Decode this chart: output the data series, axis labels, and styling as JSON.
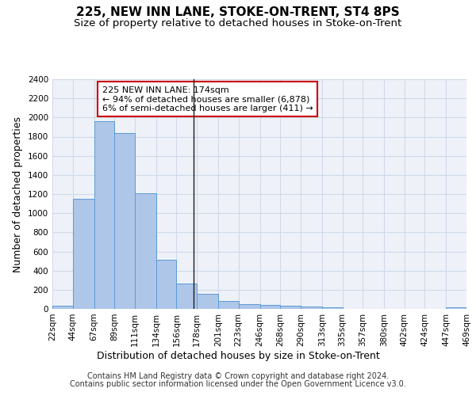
{
  "title": "225, NEW INN LANE, STOKE-ON-TRENT, ST4 8PS",
  "subtitle": "Size of property relative to detached houses in Stoke-on-Trent",
  "xlabel": "Distribution of detached houses by size in Stoke-on-Trent",
  "ylabel": "Number of detached properties",
  "footer_line1": "Contains HM Land Registry data © Crown copyright and database right 2024.",
  "footer_line2": "Contains public sector information licensed under the Open Government Licence v3.0.",
  "annotation_line1": "225 NEW INN LANE: 174sqm",
  "annotation_line2": "← 94% of detached houses are smaller (6,878)",
  "annotation_line3": "6% of semi-detached houses are larger (411) →",
  "subject_size": 174,
  "bin_edges": [
    22,
    44,
    67,
    89,
    111,
    134,
    156,
    178,
    201,
    223,
    246,
    268,
    290,
    313,
    335,
    357,
    380,
    402,
    424,
    447,
    469
  ],
  "bar_heights": [
    30,
    1150,
    1960,
    1840,
    1210,
    510,
    265,
    155,
    80,
    50,
    45,
    35,
    22,
    15,
    0,
    0,
    0,
    0,
    0,
    20
  ],
  "bar_color": "#aec6e8",
  "bar_edge_color": "#5b9bd5",
  "vline_color": "#1a1a1a",
  "grid_color": "#d0d8e8",
  "background_color": "#eef2f8",
  "annotation_box_color": "#ffffff",
  "annotation_box_edge": "#cc0000",
  "ylim": [
    0,
    2400
  ],
  "yticks": [
    0,
    200,
    400,
    600,
    800,
    1000,
    1200,
    1400,
    1600,
    1800,
    2000,
    2200,
    2400
  ],
  "title_fontsize": 11,
  "subtitle_fontsize": 9.5,
  "axis_label_fontsize": 9,
  "tick_fontsize": 7.5,
  "annotation_fontsize": 8,
  "footer_fontsize": 7
}
